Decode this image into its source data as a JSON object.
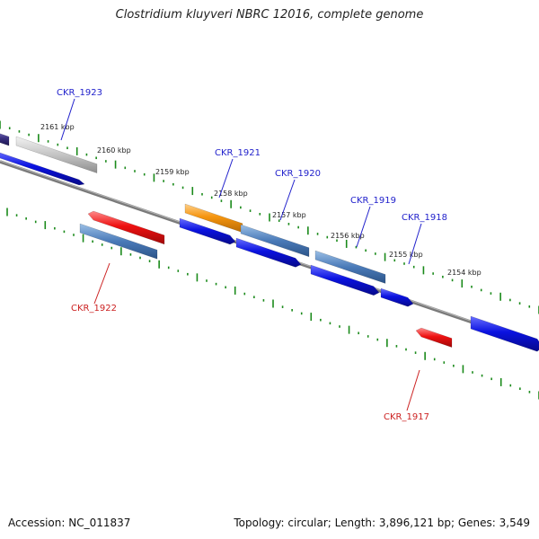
{
  "title": "Clostridium kluyveri NBRC 12016, complete genome",
  "footer": {
    "accession": "Accession: NC_011837",
    "summary": "Topology: circular; Length: 3,896,121 bp; Genes: 3,549"
  },
  "colors": {
    "backbone": "#808080",
    "ticks": "#1a8a1a",
    "plus_label": "#2222cc",
    "minus_label": "#cc2222",
    "blue": "#0a12e0",
    "steelblue": "#4a7ab8",
    "red": "#ee1111",
    "orange": "#f5950f",
    "gray": "#b8b8b8",
    "navy": "#3a3080"
  },
  "scale": {
    "unit": "kbp",
    "labels": [
      "2161 kbp",
      "2160 kbp",
      "2159 kbp",
      "2158 kbp",
      "2157 kbp",
      "2156 kbp",
      "2155 kbp",
      "2154 kbp"
    ]
  },
  "gene_labels": [
    {
      "name": "CKR_1923",
      "strand": "plus"
    },
    {
      "name": "CKR_1921",
      "strand": "plus"
    },
    {
      "name": "CKR_1920",
      "strand": "plus"
    },
    {
      "name": "CKR_1919",
      "strand": "plus"
    },
    {
      "name": "CKR_1918",
      "strand": "plus"
    },
    {
      "name": "CKR_1922",
      "strand": "minus"
    },
    {
      "name": "CKR_1917",
      "strand": "minus"
    }
  ],
  "features": [
    {
      "kind": "cds",
      "strand": "plus",
      "color": "blue"
    },
    {
      "kind": "gene",
      "strand": "plus",
      "color": "gray"
    },
    {
      "kind": "gene",
      "strand": "plus",
      "color": "navy"
    },
    {
      "kind": "cds",
      "strand": "minus",
      "color": "red"
    },
    {
      "kind": "gene",
      "strand": "minus",
      "color": "steelblue"
    },
    {
      "kind": "gene",
      "strand": "plus",
      "color": "orange"
    },
    {
      "kind": "cds",
      "strand": "plus",
      "color": "blue"
    },
    {
      "kind": "gene",
      "strand": "plus",
      "color": "steelblue"
    },
    {
      "kind": "cds",
      "strand": "plus",
      "color": "blue"
    },
    {
      "kind": "gene",
      "strand": "plus",
      "color": "steelblue"
    },
    {
      "kind": "cds",
      "strand": "plus",
      "color": "blue"
    },
    {
      "kind": "cds",
      "strand": "plus",
      "color": "blue"
    },
    {
      "kind": "cds",
      "strand": "minus",
      "color": "red"
    },
    {
      "kind": "cds",
      "strand": "plus",
      "color": "blue"
    }
  ]
}
